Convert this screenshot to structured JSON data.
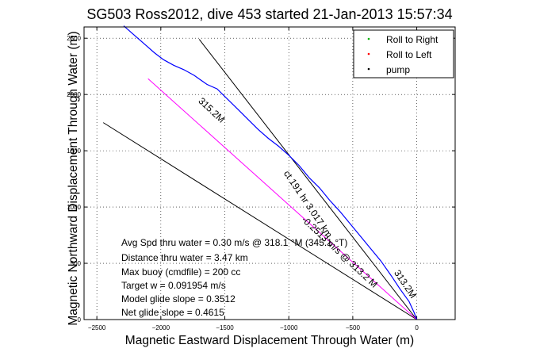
{
  "chart_data": {
    "type": "line",
    "title": "SG503 Ross2012, dive 453 started 21-Jan-2013 15:57:34",
    "xlabel": "Magnetic Eastward Displacement Through Water (m)",
    "ylabel": "Magnetic Northward Displacement Through Water (m)",
    "xlim": [
      -2600,
      300
    ],
    "ylim": [
      0,
      2600
    ],
    "xticks": [
      -2500,
      -2000,
      -1500,
      -1000,
      -500,
      0
    ],
    "yticks": [
      0,
      500,
      1000,
      1500,
      2000,
      2500
    ],
    "grid": true,
    "legend": {
      "position": "top-right",
      "entries": [
        {
          "label": "Roll to Right",
          "color": "#00b000"
        },
        {
          "label": "Roll to Left",
          "color": "#ff0000"
        },
        {
          "label": "pump",
          "color": "#000000"
        }
      ]
    },
    "track": {
      "color": "#0000ff",
      "x": [
        -2290,
        -2200,
        -2120,
        -2050,
        -1980,
        -1900,
        -1820,
        -1740,
        -1640,
        -1560,
        -1480,
        -1400,
        -1320,
        -1240,
        -1160,
        -1080,
        -1000,
        -920,
        -840,
        -760,
        -680,
        -600,
        -520,
        -440,
        -360,
        -280,
        -200,
        -130,
        -60,
        -20,
        0
      ],
      "y": [
        2610,
        2520,
        2440,
        2370,
        2310,
        2260,
        2220,
        2170,
        2090,
        2050,
        1960,
        1870,
        1780,
        1690,
        1610,
        1540,
        1460,
        1370,
        1260,
        1170,
        1060,
        960,
        850,
        740,
        630,
        520,
        390,
        270,
        160,
        60,
        0
      ]
    },
    "course_line": {
      "color": "#ff00ff",
      "x": [
        -2100,
        0
      ],
      "y": [
        2140,
        0
      ]
    },
    "black_lines": [
      {
        "x": [
          -1700,
          0
        ],
        "y": [
          2490,
          0
        ]
      },
      {
        "x": [
          -2450,
          0
        ],
        "y": [
          1750,
          0
        ]
      }
    ],
    "line_labels": [
      {
        "text": "315.2M",
        "x": -1620,
        "y": 1840,
        "angle": 43
      },
      {
        "text": "-0.2513 m/s @ 313.2 M",
        "x": -620,
        "y": 580,
        "angle": 43
      },
      {
        "text": "ct 191 hr 3.017 km",
        "x": -870,
        "y": 1010,
        "angle": 56
      },
      {
        "text": "313.2M",
        "x": -110,
        "y": 300,
        "angle": 56
      }
    ],
    "annotations": [
      "Avg Spd thru water =  0.30 m/s @ 318.1 °M (345.1 °T)",
      "Distance thru water =  3.47 km",
      "Max buoy (cmdfile) = 200 cc",
      "Target w = 0.091954 m/s",
      "Model glide slope = 0.3512",
      "Net glide slope = 0.4615"
    ]
  }
}
